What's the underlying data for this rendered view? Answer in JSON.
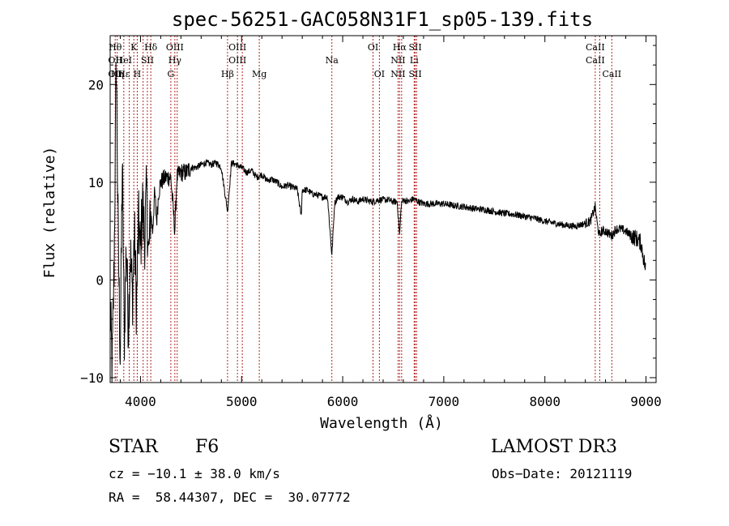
{
  "chart_data": {
    "type": "line",
    "title": "spec-56251-GAC058N31F1_sp05-139.fits",
    "xlabel": "Wavelength (Å)",
    "ylabel": "Flux (relative)",
    "xlim": [
      3700,
      9100
    ],
    "ylim": [
      -10.5,
      25
    ],
    "xticks": [
      4000,
      5000,
      6000,
      7000,
      8000,
      9000
    ],
    "yticks": [
      -10,
      0,
      10,
      20
    ],
    "xtick_labels": [
      "4000",
      "5000",
      "6000",
      "7000",
      "8000",
      "9000"
    ],
    "ytick_labels": [
      "−10",
      "0",
      "10",
      "20"
    ],
    "series": [
      {
        "name": "flux",
        "x": [
          3700,
          3720,
          3740,
          3760,
          3780,
          3800,
          3820,
          3840,
          3860,
          3880,
          3900,
          3920,
          3940,
          3960,
          3980,
          4000,
          4020,
          4040,
          4060,
          4080,
          4100,
          4120,
          4140,
          4160,
          4180,
          4200,
          4250,
          4300,
          4340,
          4360,
          4400,
          4450,
          4500,
          4550,
          4600,
          4650,
          4700,
          4750,
          4800,
          4861,
          4900,
          4950,
          5000,
          5050,
          5100,
          5150,
          5200,
          5250,
          5300,
          5350,
          5400,
          5450,
          5500,
          5550,
          5590,
          5600,
          5650,
          5700,
          5750,
          5800,
          5850,
          5893,
          5920,
          5950,
          6000,
          6050,
          6100,
          6150,
          6200,
          6250,
          6300,
          6350,
          6400,
          6450,
          6500,
          6540,
          6563,
          6580,
          6600,
          6650,
          6700,
          6750,
          6800,
          6900,
          7000,
          7100,
          7200,
          7300,
          7400,
          7500,
          7600,
          7700,
          7800,
          7900,
          8000,
          8100,
          8200,
          8300,
          8400,
          8450,
          8498,
          8520,
          8542,
          8560,
          8600,
          8662,
          8700,
          8750,
          8800,
          8850,
          8900,
          8950,
          8980,
          9000
        ],
        "values": [
          -3,
          -9,
          2,
          23,
          4,
          -8,
          12,
          -6,
          4,
          -5,
          3,
          -2,
          5,
          -3,
          6,
          3,
          8,
          4,
          9,
          2,
          7,
          5,
          9,
          6,
          9,
          10,
          10.5,
          10.5,
          5,
          10.5,
          11,
          11,
          11.5,
          11.5,
          11.8,
          12,
          11.8,
          12,
          11.5,
          7,
          12,
          11.8,
          11.5,
          11,
          11.2,
          10.5,
          10.8,
          10.2,
          10.3,
          10,
          9.5,
          9.7,
          9.5,
          9.3,
          6.5,
          9.2,
          9.2,
          8.8,
          8.7,
          8.5,
          8.5,
          2.5,
          7.8,
          8.5,
          8.5,
          8,
          8.3,
          8,
          8.3,
          8.1,
          8,
          8.2,
          8.2,
          8.2,
          8,
          8,
          4.5,
          7.8,
          8.2,
          8,
          8.3,
          8,
          7.8,
          7.8,
          7.8,
          7.6,
          7.5,
          7.3,
          7.2,
          7,
          6.8,
          6.7,
          6.5,
          6.3,
          6,
          5.8,
          5.6,
          5.5,
          5.8,
          6,
          7.5,
          5.5,
          4.5,
          5,
          5,
          4.5,
          5.2,
          5.2,
          5,
          4.5,
          4.3,
          3.8,
          2,
          1
        ]
      }
    ],
    "lines": [
      {
        "x": 3750,
        "labels": [
          "Hθ",
          "OII",
          "OII"
        ]
      },
      {
        "x": 3770,
        "labels": [
          "",
          "",
          "Hη"
        ]
      },
      {
        "x": 3835,
        "labels": [
          "",
          "HeI",
          "Hε"
        ]
      },
      {
        "x": 3889,
        "labels": [
          "",
          "",
          ""
        ]
      },
      {
        "x": 3934,
        "labels": [
          "K",
          "",
          ""
        ]
      },
      {
        "x": 3968,
        "labels": [
          "",
          "",
          "H"
        ]
      },
      {
        "x": 4026,
        "labels": [
          "",
          "",
          ""
        ]
      },
      {
        "x": 4068,
        "labels": [
          "",
          "SII",
          ""
        ]
      },
      {
        "x": 4102,
        "labels": [
          "Hδ",
          "",
          ""
        ]
      },
      {
        "x": 4300,
        "labels": [
          "",
          "",
          "G"
        ]
      },
      {
        "x": 4340,
        "labels": [
          "OIII",
          "Hγ",
          ""
        ]
      },
      {
        "x": 4363,
        "labels": [
          "",
          "",
          ""
        ]
      },
      {
        "x": 4861,
        "labels": [
          "",
          "",
          "Hβ"
        ]
      },
      {
        "x": 4959,
        "labels": [
          "OIII",
          "OIII",
          ""
        ]
      },
      {
        "x": 5007,
        "labels": [
          "",
          "",
          ""
        ]
      },
      {
        "x": 5175,
        "labels": [
          "",
          "",
          "Mg"
        ]
      },
      {
        "x": 5893,
        "labels": [
          "",
          "Na",
          ""
        ]
      },
      {
        "x": 6300,
        "labels": [
          "OI",
          "",
          ""
        ]
      },
      {
        "x": 6363,
        "labels": [
          "",
          "",
          "OI"
        ]
      },
      {
        "x": 6548,
        "labels": [
          "",
          "NII",
          "NII"
        ]
      },
      {
        "x": 6563,
        "labels": [
          "Hα",
          "",
          ""
        ]
      },
      {
        "x": 6583,
        "labels": [
          "",
          "",
          ""
        ]
      },
      {
        "x": 6707,
        "labels": [
          "",
          "Li",
          ""
        ]
      },
      {
        "x": 6717,
        "labels": [
          "SII",
          "",
          "SII"
        ]
      },
      {
        "x": 6731,
        "labels": [
          "",
          "",
          ""
        ]
      },
      {
        "x": 8498,
        "labels": [
          "CaII",
          "CaII",
          ""
        ]
      },
      {
        "x": 8542,
        "labels": [
          "",
          "",
          ""
        ]
      },
      {
        "x": 8662,
        "labels": [
          "",
          "",
          "CaII"
        ]
      }
    ]
  },
  "info": {
    "object_class": "STAR",
    "subclass": "F6",
    "survey": "LAMOST DR3",
    "cz": "cz = −10.1 ± 38.0 km/s",
    "obs_date": "Obs−Date: 20121119",
    "coords": "RA =  58.44307, DEC =  30.07772"
  },
  "colors": {
    "line_marker": "#b22222",
    "spectrum": "#000000"
  }
}
